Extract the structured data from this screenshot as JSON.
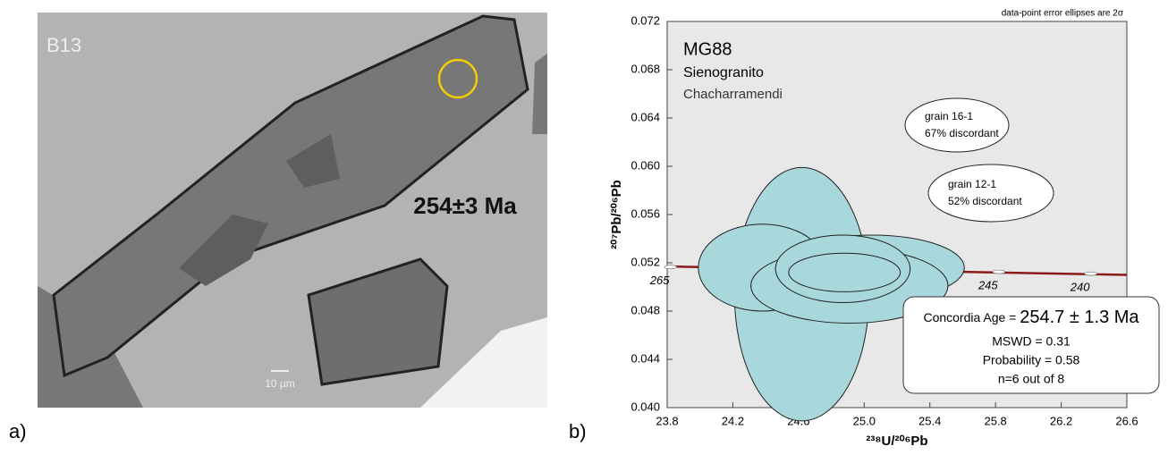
{
  "panel_a": {
    "panel_label": "a)",
    "sample_label": "B13",
    "age": "254±3 Ma",
    "scale_bar": "10 µm"
  },
  "chart_data": {
    "type": "ellipse",
    "panel_label": "b)",
    "title": "MG88",
    "subtitle": "Sienogranito",
    "location": "Chacharramendi",
    "note": "data-point error ellipses are 2σ",
    "x_label": "²³⁸U/²⁰⁶Pb",
    "y_label": "²⁰⁷Pb/²⁰⁶Pb",
    "xlim": [
      23.8,
      26.6
    ],
    "ylim": [
      0.04,
      0.072
    ],
    "xticks": [
      23.8,
      24.2,
      24.6,
      {
        "value": 25,
        "label": "25.0"
      },
      25.4,
      25.8,
      26.2,
      26.6
    ],
    "yticks": [
      {
        "value": 0.04,
        "label": "0.040"
      },
      0.044,
      0.048,
      0.052,
      0.056,
      {
        "value": 0.06,
        "label": "0.060"
      },
      0.064,
      0.068,
      0.072
    ],
    "ellipses": {
      "color": "#a8d8dc",
      "x": [
        24.62,
        24.38,
        25.05,
        24.91,
        24.87,
        24.88
      ],
      "y": [
        0.0494,
        0.0516,
        0.0516,
        0.0501,
        0.0515,
        0.0512
      ],
      "sx": [
        0.41,
        0.39,
        0.56,
        0.6,
        0.41,
        0.34
      ],
      "sy": [
        0.0105,
        0.0036,
        0.0027,
        0.0031,
        0.0028,
        0.0016
      ]
    },
    "concordia": {
      "color": "#8b1a1a",
      "x": [
        23.8,
        26.6
      ],
      "y": [
        0.0517,
        0.051
      ],
      "ages": [
        265,
        245,
        240
      ],
      "age_x": [
        23.82,
        25.82,
        26.38
      ],
      "age_y": [
        0.05165,
        0.05125,
        0.0511
      ]
    },
    "annotations": [
      [
        "grain 16-1",
        "67% discordant"
      ],
      [
        "grain 12-1",
        "52% discordant"
      ]
    ],
    "result": {
      "label": "Concordia Age = ",
      "age": "254.7 ± 1.3 Ma",
      "mswd": "MSWD = 0.31",
      "probability": "Probability = 0.58",
      "n": "n=6 out of 8"
    }
  }
}
